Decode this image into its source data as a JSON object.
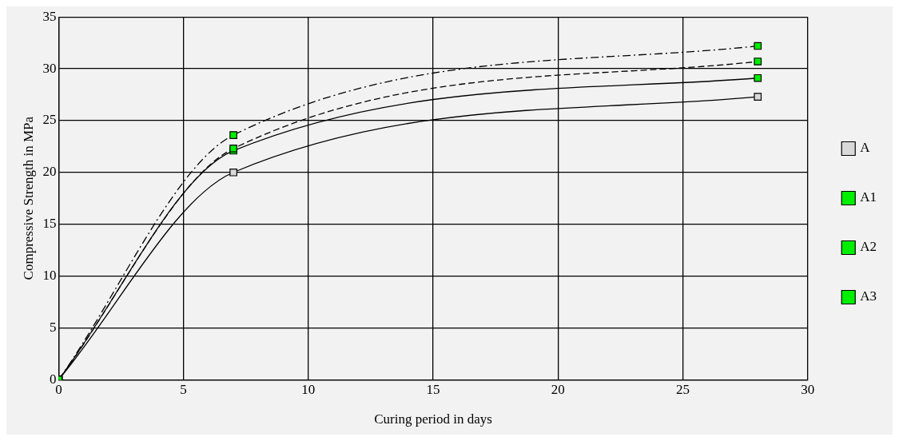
{
  "chart_data": {
    "type": "line",
    "xlabel": "Curing period in days",
    "ylabel": "Compressive Strength in MPa",
    "x": [
      0,
      7,
      28
    ],
    "series": [
      {
        "name": "A",
        "color": "#d9d9d9",
        "values": [
          0,
          20,
          27.3
        ],
        "line_style": "solid"
      },
      {
        "name": "A1",
        "color": "#00ee00",
        "values": [
          0,
          22.1,
          29.1
        ],
        "line_style": "solid"
      },
      {
        "name": "A2",
        "color": "#00ee00",
        "values": [
          0,
          22.3,
          30.7
        ],
        "line_style": "dashed"
      },
      {
        "name": "A3",
        "color": "#00ee00",
        "values": [
          0,
          23.6,
          32.2
        ],
        "line_style": "dashdot"
      }
    ],
    "xlim": [
      0,
      30
    ],
    "xticks": [
      0,
      5,
      10,
      15,
      20,
      25,
      30
    ],
    "ylim": [
      0,
      35
    ],
    "yticks": [
      0,
      5,
      10,
      15,
      20,
      25,
      30,
      35
    ],
    "grid": true,
    "legend": "right",
    "marker": "square"
  }
}
